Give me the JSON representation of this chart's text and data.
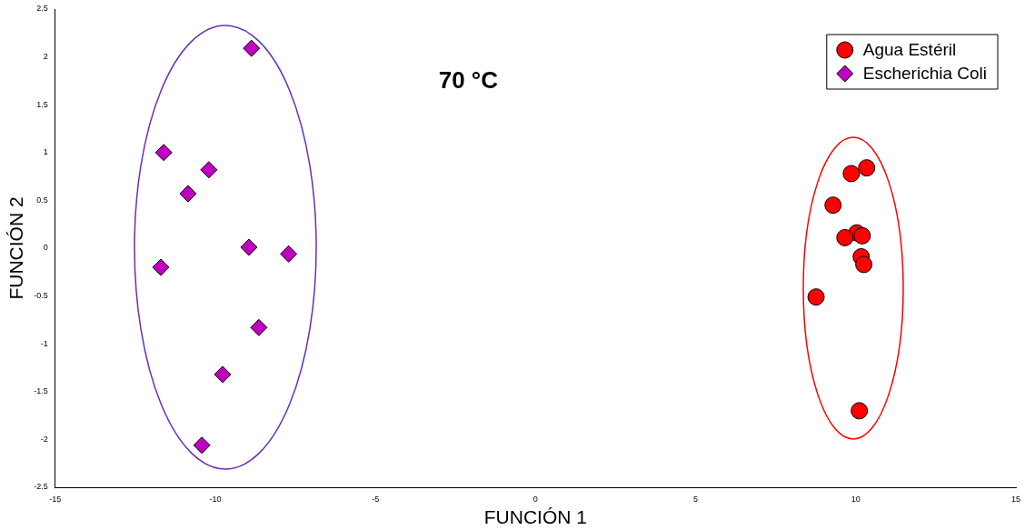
{
  "chart_data": {
    "type": "scatter",
    "title": "70 °C",
    "xlabel": "FUNCIÓN 1",
    "ylabel": "FUNCIÓN 2",
    "xlim": [
      -15,
      15
    ],
    "xticks": [
      -15,
      -10,
      -5,
      0,
      5,
      10,
      15
    ],
    "ylim": [
      -2.5,
      2.5
    ],
    "yticks": [
      -2.5,
      -2,
      -1.5,
      -1,
      -0.5,
      0,
      0.5,
      1,
      1.5,
      2,
      2.5
    ],
    "grid": false,
    "legend": "top right",
    "series": [
      {
        "name": "Agua Estéril",
        "color": "#ff0000",
        "marker": "circle",
        "x": [
          10.34,
          9.86,
          9.29,
          10.03,
          9.66,
          10.2,
          10.17,
          10.25,
          8.76,
          10.11
        ],
        "values": [
          0.84,
          0.78,
          0.45,
          0.16,
          0.11,
          0.13,
          -0.09,
          -0.17,
          -0.51,
          -1.7
        ]
      },
      {
        "name": "Escherichia Coli",
        "color": "#c000c0",
        "marker": "diamond",
        "x": [
          -8.87,
          -11.61,
          -10.2,
          -10.85,
          -8.95,
          -7.71,
          -11.7,
          -8.64,
          -9.77,
          -10.42
        ],
        "values": [
          2.09,
          1.0,
          0.82,
          0.57,
          0.01,
          -0.06,
          -0.2,
          -0.83,
          -1.32,
          -2.06
        ]
      }
    ]
  }
}
